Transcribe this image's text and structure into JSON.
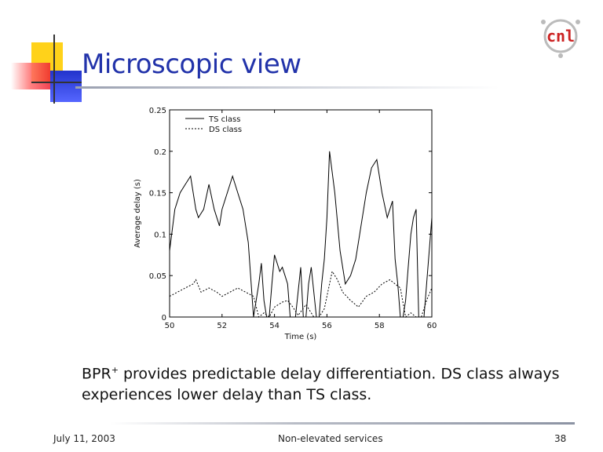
{
  "slide": {
    "title": "Microscopic view",
    "body_prefix": "BPR",
    "body_superscript": "+",
    "body_rest": " provides predictable delay differentiation. DS class always experiences lower delay than TS class."
  },
  "logo": {
    "text": "cnl"
  },
  "footer": {
    "date": "July 11, 2003",
    "center": "Non-elevated services",
    "page": "38"
  },
  "colors": {
    "title": "#2233aa",
    "deco_yellow": "#ffd21a",
    "deco_red": "#ee2233",
    "deco_blue": "#2233cc",
    "logo_red": "#cc2222"
  },
  "chart_data": {
    "type": "line",
    "xlabel": "Time (s)",
    "ylabel": "Average delay (s)",
    "xlim": [
      50,
      60
    ],
    "ylim": [
      0,
      0.25
    ],
    "x_ticks": [
      50,
      52,
      54,
      56,
      58,
      60
    ],
    "x_tick_labels": [
      "50",
      "52",
      "54",
      "56",
      "58",
      "60"
    ],
    "y_ticks": [
      0,
      0.05,
      0.1,
      0.15,
      0.2,
      0.25
    ],
    "y_tick_labels": [
      "0",
      "0.05",
      "0.1",
      "0.15",
      "0.2",
      "0.25"
    ],
    "legend_position": "top-left",
    "series": [
      {
        "name": "TS class",
        "style": "solid",
        "x": [
          50.0,
          50.2,
          50.4,
          50.6,
          50.8,
          51.0,
          51.1,
          51.3,
          51.5,
          51.7,
          51.9,
          52.0,
          52.2,
          52.4,
          52.6,
          52.8,
          53.0,
          53.2,
          53.4,
          53.5,
          53.6,
          53.7,
          53.8,
          53.9,
          54.0,
          54.2,
          54.3,
          54.4,
          54.5,
          54.6,
          54.8,
          55.0,
          55.1,
          55.2,
          55.3,
          55.4,
          55.6,
          55.7,
          55.8,
          55.9,
          56.0,
          56.1,
          56.3,
          56.5,
          56.7,
          56.9,
          57.1,
          57.3,
          57.5,
          57.7,
          57.9,
          58.1,
          58.3,
          58.5,
          58.6,
          58.7,
          58.8,
          58.9,
          59.0,
          59.1,
          59.2,
          59.3,
          59.4,
          59.5,
          59.7,
          59.9,
          60.0
        ],
        "y": [
          0.08,
          0.13,
          0.15,
          0.16,
          0.17,
          0.13,
          0.12,
          0.13,
          0.16,
          0.13,
          0.11,
          0.13,
          0.15,
          0.17,
          0.15,
          0.13,
          0.09,
          0.0,
          0.04,
          0.065,
          0.02,
          0.0,
          0.0,
          0.04,
          0.075,
          0.055,
          0.06,
          0.05,
          0.04,
          0.0,
          0.0,
          0.06,
          0.0,
          0.0,
          0.04,
          0.06,
          0.0,
          0.0,
          0.04,
          0.07,
          0.12,
          0.2,
          0.15,
          0.08,
          0.04,
          0.05,
          0.07,
          0.11,
          0.15,
          0.18,
          0.19,
          0.15,
          0.12,
          0.14,
          0.07,
          0.04,
          0.0,
          0.0,
          0.02,
          0.06,
          0.1,
          0.12,
          0.13,
          0.0,
          0.0,
          0.08,
          0.12
        ]
      },
      {
        "name": "DS class",
        "style": "dashed",
        "x": [
          50.0,
          50.3,
          50.6,
          50.9,
          51.0,
          51.2,
          51.5,
          51.8,
          52.0,
          52.3,
          52.6,
          52.9,
          53.2,
          53.4,
          53.6,
          53.8,
          54.0,
          54.3,
          54.5,
          54.7,
          54.9,
          55.2,
          55.5,
          55.7,
          55.9,
          56.1,
          56.2,
          56.4,
          56.6,
          56.9,
          57.2,
          57.5,
          57.8,
          58.1,
          58.4,
          58.6,
          58.8,
          59.0,
          59.2,
          59.4,
          59.6,
          59.8,
          60.0
        ],
        "y": [
          0.025,
          0.03,
          0.035,
          0.04,
          0.045,
          0.03,
          0.035,
          0.03,
          0.025,
          0.03,
          0.035,
          0.03,
          0.025,
          0.0,
          0.005,
          0.0,
          0.012,
          0.018,
          0.02,
          0.012,
          0.002,
          0.015,
          0.0,
          0.0,
          0.01,
          0.04,
          0.055,
          0.045,
          0.03,
          0.02,
          0.012,
          0.025,
          0.03,
          0.04,
          0.045,
          0.04,
          0.035,
          0.0,
          0.005,
          0.0,
          0.0,
          0.02,
          0.035
        ]
      }
    ]
  }
}
